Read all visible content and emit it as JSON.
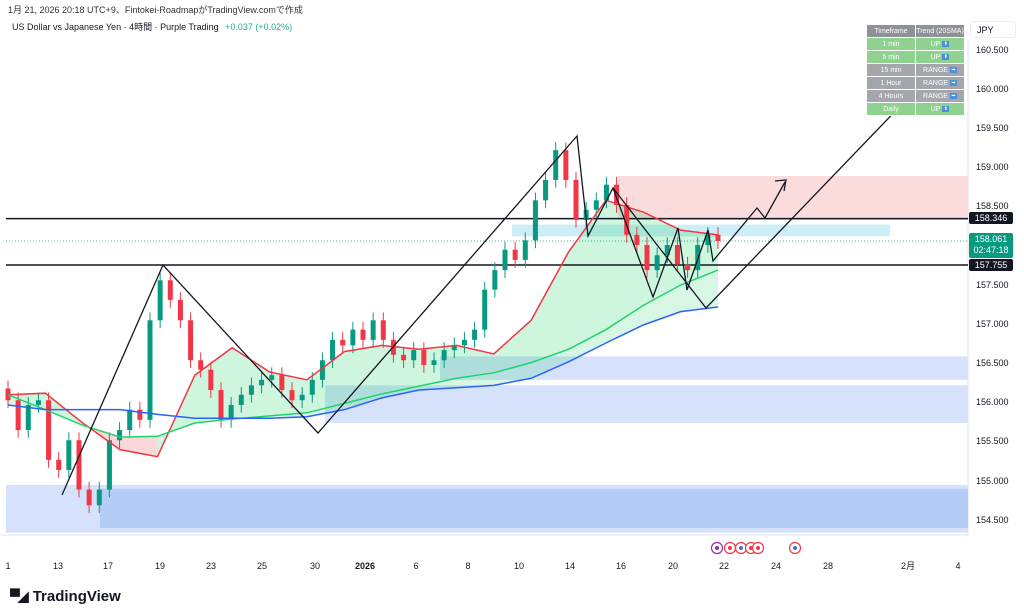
{
  "header": {
    "created_line": "1月 21, 2026 20:18 UTC+9、Fintokei-RoadmapがTradingView.comで作成",
    "symbol_title": "US Dollar vs Japanese Yen · 4時間 · Purple Trading",
    "change": "+0.037 (+0.02%)"
  },
  "trend_table": {
    "headers": [
      "Timeframe",
      "Trend (20SMA)"
    ],
    "rows": [
      {
        "tf": "1 min",
        "trend": "UP",
        "state": "up"
      },
      {
        "tf": "5 min",
        "trend": "UP",
        "state": "up"
      },
      {
        "tf": "15 min",
        "trend": "RANGE",
        "state": "range"
      },
      {
        "tf": "1 Hour",
        "trend": "RANGE",
        "state": "range"
      },
      {
        "tf": "4 Hours",
        "trend": "RANGE",
        "state": "range"
      },
      {
        "tf": "Daily",
        "trend": "UP",
        "state": "up"
      }
    ]
  },
  "price_axis": {
    "currency": "JPY",
    "line_upper": "158.346",
    "line_lower": "157.755",
    "current_price": "158.061",
    "countdown": "02:47:18"
  },
  "colors": {
    "up": "#089981",
    "down": "#f23645",
    "sma_fast": "#f23645",
    "sma_mid": "#22d36b",
    "sma_slow": "#2962ff"
  },
  "chart_data": {
    "type": "candlestick",
    "title": "US Dollar vs Japanese Yen · 4時間",
    "ylabel": "JPY",
    "ylim": [
      154.3,
      160.6
    ],
    "y_ticks": [
      "160.500",
      "160.000",
      "159.500",
      "159.000",
      "158.500",
      "157.500",
      "157.000",
      "156.500",
      "156.000",
      "155.500",
      "155.000",
      "154.500"
    ],
    "x_ticks": [
      "1",
      "13",
      "17",
      "19",
      "23",
      "25",
      "30",
      "2026",
      "6",
      "8",
      "10",
      "14",
      "16",
      "20",
      "22",
      "24",
      "28",
      "2月",
      "4"
    ],
    "closes": [
      156.03,
      155.65,
      155.97,
      156.03,
      155.27,
      155.14,
      155.52,
      154.89,
      154.69,
      154.89,
      155.52,
      155.65,
      155.91,
      155.78,
      157.05,
      157.56,
      157.31,
      157.05,
      156.54,
      156.42,
      156.16,
      155.78,
      155.97,
      156.1,
      156.22,
      156.29,
      156.35,
      156.16,
      156.03,
      156.1,
      156.29,
      156.54,
      156.8,
      156.73,
      156.93,
      156.8,
      157.05,
      156.8,
      156.61,
      156.54,
      156.67,
      156.48,
      156.54,
      156.67,
      156.73,
      156.8,
      156.93,
      157.44,
      157.69,
      157.95,
      157.82,
      158.07,
      158.58,
      158.84,
      159.22,
      158.84,
      158.33,
      158.46,
      158.58,
      158.78,
      158.52,
      158.14,
      158.01,
      157.69,
      157.88,
      158.01,
      157.76,
      157.69,
      158.01,
      158.14,
      158.061
    ],
    "sma_fast": [
      156.1,
      156.12,
      155.74,
      155.4,
      155.31,
      156.35,
      156.7,
      156.39,
      156.29,
      156.65,
      156.73,
      156.68,
      156.73,
      156.62,
      157.05,
      157.92,
      158.58,
      158.43,
      158.2,
      158.14
    ],
    "sma_mid": [
      156.1,
      155.91,
      155.71,
      155.56,
      155.57,
      155.74,
      155.79,
      155.83,
      155.87,
      155.99,
      156.11,
      156.21,
      156.31,
      156.38,
      156.51,
      156.68,
      156.93,
      157.24,
      157.5,
      157.69
    ],
    "sma_slow": [
      155.97,
      155.91,
      155.91,
      155.91,
      155.85,
      155.8,
      155.8,
      155.8,
      155.82,
      155.91,
      156.06,
      156.16,
      156.19,
      156.22,
      156.31,
      156.52,
      156.76,
      156.99,
      157.16,
      157.22
    ],
    "horizontal_levels": [
      158.346,
      157.755
    ],
    "zones": [
      {
        "name": "supply-zone",
        "top": 158.89,
        "bottom": 158.33,
        "color": "#fbdcdc"
      },
      {
        "name": "fvg-zone",
        "top": 158.27,
        "bottom": 158.12,
        "color": "#cdeef6"
      },
      {
        "name": "demand-zone-upper",
        "top": 156.59,
        "bottom": 156.29,
        "color": "#d6e2fb"
      },
      {
        "name": "demand-zone-middle",
        "top": 156.22,
        "bottom": 155.74,
        "color": "#d6e2fb"
      },
      {
        "name": "demand-zone-lower",
        "top": 154.95,
        "bottom": 154.34,
        "color": "#d6e2fb"
      }
    ]
  },
  "footer": {
    "brand": "TradingView"
  }
}
